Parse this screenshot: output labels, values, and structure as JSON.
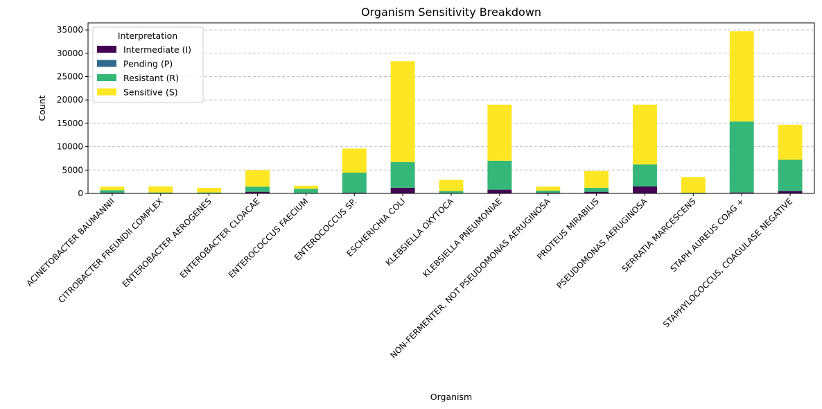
{
  "chart_data": {
    "type": "bar",
    "stacked": true,
    "title": "Organism Sensitivity Breakdown",
    "xlabel": "Organism",
    "ylabel": "Count",
    "ylim": [
      0,
      36500
    ],
    "yticks": [
      0,
      5000,
      10000,
      15000,
      20000,
      25000,
      30000,
      35000
    ],
    "grid": "y-dashed",
    "legend_title": "Interpretation",
    "legend_position": "top-left",
    "categories": [
      "ACINETOBACTER BAUMANNII",
      "CITROBACTER FREUNDII COMPLEX",
      "ENTEROBACTER AEROGENES",
      "ENTEROBACTER CLOACAE",
      "ENTEROCOCCUS FAECIUM",
      "ENTEROCOCCUS SP.",
      "ESCHERICHIA COLI",
      "KLEBSIELLA OXYTOCA",
      "KLEBSIELLA PNEUMONIAE",
      "NON-FERMENTER, NOT PSEUDOMONAS AERUGINOSA",
      "PROTEUS MIRABILIS",
      "PSEUDOMONAS AERUGINOSA",
      "SERRATIA MARCESCENS",
      "STAPH AUREUS COAG +",
      "STAPHYLOCOCCUS, COAGULASE NEGATIVE"
    ],
    "series": [
      {
        "name": "Intermediate (I)",
        "color": "#440154",
        "values": [
          150,
          50,
          50,
          350,
          50,
          150,
          1200,
          50,
          800,
          150,
          350,
          1500,
          50,
          200,
          500
        ]
      },
      {
        "name": "Pending (P)",
        "color": "#31688e",
        "values": [
          0,
          0,
          0,
          0,
          0,
          0,
          0,
          0,
          0,
          0,
          0,
          0,
          0,
          0,
          0
        ]
      },
      {
        "name": "Resistant (R)",
        "color": "#35b779",
        "values": [
          550,
          150,
          150,
          1100,
          950,
          4300,
          5500,
          450,
          6200,
          450,
          850,
          4700,
          100,
          15200,
          6700
        ]
      },
      {
        "name": "Sensitive (S)",
        "color": "#fde725",
        "values": [
          750,
          1300,
          1000,
          3550,
          650,
          5150,
          21600,
          2400,
          12000,
          850,
          3600,
          12800,
          3350,
          19300,
          7500
        ]
      }
    ]
  }
}
